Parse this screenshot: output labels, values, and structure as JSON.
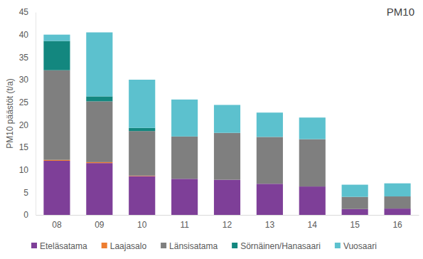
{
  "chart_data": {
    "type": "bar",
    "stacked": true,
    "title": "PM10",
    "y_label": "PM10 päästöt (t/a)",
    "categories": [
      "08",
      "09",
      "10",
      "11",
      "12",
      "13",
      "14",
      "15",
      "16"
    ],
    "series": [
      {
        "name": "Eteläsatama",
        "color": "#7e3f98",
        "values": [
          12.0,
          11.5,
          8.6,
          8.0,
          7.8,
          6.9,
          6.3,
          1.3,
          1.4
        ]
      },
      {
        "name": "Laajasalo",
        "color": "#ed7d31",
        "values": [
          0.2,
          0.2,
          0.1,
          0,
          0,
          0,
          0,
          0,
          0
        ]
      },
      {
        "name": "Länsisatama",
        "color": "#7f7f7f",
        "values": [
          19.9,
          13.5,
          9.9,
          9.4,
          10.4,
          10.4,
          10.5,
          2.7,
          2.7
        ]
      },
      {
        "name": "Sörnäinen/Hanasaari",
        "color": "#13877f",
        "values": [
          6.5,
          1.1,
          0.7,
          0,
          0,
          0,
          0,
          0,
          0
        ]
      },
      {
        "name": "Vuosaari",
        "color": "#5cc1ce",
        "values": [
          1.4,
          14.2,
          10.7,
          8.2,
          6.2,
          5.4,
          4.8,
          2.7,
          2.9
        ]
      }
    ],
    "ylim": [
      0,
      45
    ],
    "yticks": [
      0,
      5,
      10,
      15,
      20,
      25,
      30,
      35,
      40,
      45
    ],
    "grid": false,
    "legend": "bottom"
  }
}
